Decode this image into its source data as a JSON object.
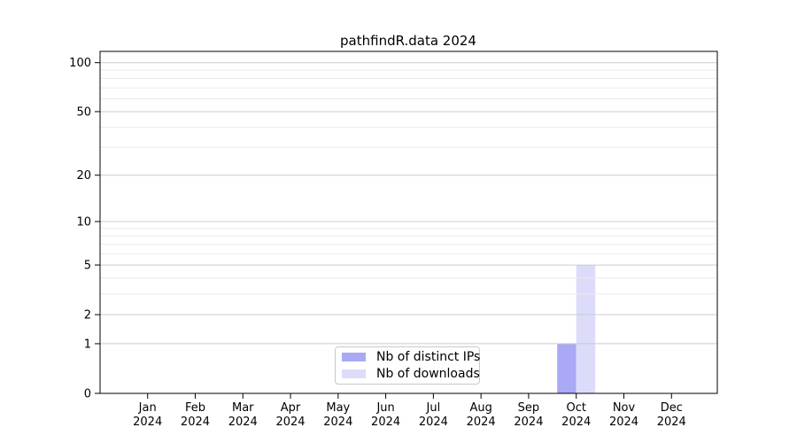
{
  "chart_data": {
    "type": "bar",
    "title": "pathfindR.data 2024",
    "categories": [
      "Jan",
      "Feb",
      "Mar",
      "Apr",
      "May",
      "Jun",
      "Jul",
      "Aug",
      "Sep",
      "Oct",
      "Nov",
      "Dec"
    ],
    "x_year_label": "2024",
    "series": [
      {
        "name": "Nb of distinct IPs",
        "color": "#a9a9f5",
        "values": [
          0,
          0,
          0,
          0,
          0,
          0,
          0,
          0,
          0,
          1,
          0,
          0
        ]
      },
      {
        "name": "Nb of downloads",
        "color": "#dcdcfa",
        "values": [
          0,
          0,
          0,
          0,
          0,
          0,
          0,
          0,
          0,
          5,
          0,
          0
        ]
      }
    ],
    "y_axis": {
      "scale": "log1p",
      "major_ticks": [
        0,
        1,
        2,
        5,
        10,
        20,
        50,
        100
      ],
      "minor_gridlines": [
        3,
        4,
        6,
        7,
        8,
        9,
        30,
        40,
        60,
        70,
        80,
        90
      ],
      "ylim": [
        0,
        117
      ]
    },
    "xlabel": "",
    "ylabel": "",
    "grid": "on",
    "legend_position": "lower center",
    "colors": {
      "grid_major": "#cccccc",
      "grid_minor": "#ebebeb",
      "axis": "#000000",
      "background": "#ffffff"
    }
  }
}
